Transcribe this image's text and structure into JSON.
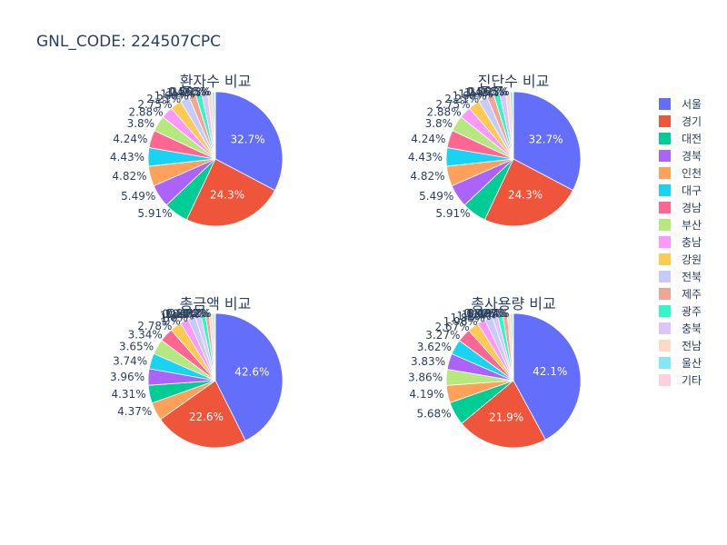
{
  "title": "GNL_CODE: 224507CPC",
  "legend": {
    "placement": "right",
    "entries": [
      "서울",
      "경기",
      "대전",
      "경북",
      "인천",
      "대구",
      "경남",
      "부산",
      "충남",
      "강원",
      "전북",
      "제주",
      "광주",
      "충북",
      "전남",
      "울산",
      "기타"
    ]
  },
  "colors": [
    "#636efa",
    "#EF553B",
    "#00cc96",
    "#ab63fa",
    "#FFA15A",
    "#19d3f3",
    "#FF6692",
    "#B6E880",
    "#FF97FF",
    "#FECB52",
    "#c6cafd",
    "#f4a494",
    "#2ff7c6",
    "#dcc5fd",
    "#fedac4",
    "#86e6f9",
    "#fecfde"
  ],
  "chart_data": [
    {
      "type": "pie",
      "title": "환자수 비교",
      "slices": [
        {
          "label": "서울",
          "value": 32.7
        },
        {
          "label": "경기",
          "value": 24.3
        },
        {
          "label": "대전",
          "value": 5.91
        },
        {
          "label": "경북",
          "value": 5.49
        },
        {
          "label": "인천",
          "value": 4.82
        },
        {
          "label": "대구",
          "value": 4.43
        },
        {
          "label": "경남",
          "value": 4.24
        },
        {
          "label": "부산",
          "value": 3.8
        },
        {
          "label": "충남",
          "value": 2.88
        },
        {
          "label": "강원",
          "value": 2.75
        },
        {
          "label": "전북",
          "value": 2.21
        },
        {
          "label": "제주",
          "value": 1.68
        },
        {
          "label": "광주",
          "value": 1.43
        },
        {
          "label": "충북",
          "value": 1.43
        },
        {
          "label": "전남",
          "value": 1.11
        },
        {
          "label": "울산",
          "value": 0.565
        },
        {
          "label": "기타",
          "value": 0.195
        }
      ],
      "value_labels": [
        "32.7%",
        "24.3%",
        "5.91%",
        "5.49%",
        "4.82%",
        "4.43%",
        "4.24%",
        "3.8%",
        "2.88%",
        "2.75%",
        "2.21%",
        "1.68%",
        "1.43%",
        "1.43%",
        "1.11%",
        "0.565%",
        "0.195%"
      ]
    },
    {
      "type": "pie",
      "title": "진단수 비교",
      "slices": [
        {
          "label": "서울",
          "value": 32.7
        },
        {
          "label": "경기",
          "value": 24.3
        },
        {
          "label": "대전",
          "value": 5.91
        },
        {
          "label": "경북",
          "value": 5.49
        },
        {
          "label": "인천",
          "value": 4.82
        },
        {
          "label": "대구",
          "value": 4.43
        },
        {
          "label": "경남",
          "value": 4.24
        },
        {
          "label": "부산",
          "value": 3.8
        },
        {
          "label": "충남",
          "value": 2.88
        },
        {
          "label": "강원",
          "value": 2.75
        },
        {
          "label": "전북",
          "value": 2.21
        },
        {
          "label": "제주",
          "value": 1.68
        },
        {
          "label": "광주",
          "value": 1.43
        },
        {
          "label": "충북",
          "value": 1.43
        },
        {
          "label": "전남",
          "value": 1.11
        },
        {
          "label": "울산",
          "value": 0.565
        },
        {
          "label": "기타",
          "value": 0.195
        }
      ],
      "value_labels": [
        "32.7%",
        "24.3%",
        "5.91%",
        "5.49%",
        "4.82%",
        "4.43%",
        "4.24%",
        "3.8%",
        "2.88%",
        "2.75%",
        "2.21%",
        "1.68%",
        "1.43%",
        "1.43%",
        "1.11%",
        "0.565%",
        "0.195%"
      ]
    },
    {
      "type": "pie",
      "title": "총금액 비교",
      "slices": [
        {
          "label": "서울",
          "value": 42.6
        },
        {
          "label": "경기",
          "value": 22.6
        },
        {
          "label": "인천",
          "value": 4.37
        },
        {
          "label": "대전",
          "value": 4.31
        },
        {
          "label": "경북",
          "value": 3.96
        },
        {
          "label": "대구",
          "value": 3.74
        },
        {
          "label": "부산",
          "value": 3.65
        },
        {
          "label": "경남",
          "value": 3.34
        },
        {
          "label": "강원",
          "value": 2.78
        },
        {
          "label": "충남",
          "value": 2.0
        },
        {
          "label": "전북",
          "value": 1.8
        },
        {
          "label": "충북",
          "value": 1.34
        },
        {
          "label": "광주",
          "value": 1.15
        },
        {
          "label": "제주",
          "value": 0.868
        },
        {
          "label": "전남",
          "value": 0.814
        },
        {
          "label": "울산",
          "value": 0.472
        },
        {
          "label": "기타",
          "value": 0.2
        }
      ],
      "value_labels": [
        "42.6%",
        "22.6%",
        "4.37%",
        "4.31%",
        "3.96%",
        "3.74%",
        "3.65%",
        "3.34%",
        "2.78%",
        "2%",
        "1.8%",
        "1.34%",
        "1.15%",
        "0.868%",
        "0.814%",
        "0.472%",
        "0.2%"
      ]
    },
    {
      "type": "pie",
      "title": "총사용량 비교",
      "slices": [
        {
          "label": "서울",
          "value": 42.1
        },
        {
          "label": "경기",
          "value": 21.9
        },
        {
          "label": "대전",
          "value": 5.68
        },
        {
          "label": "인천",
          "value": 4.19
        },
        {
          "label": "부산",
          "value": 3.86
        },
        {
          "label": "경북",
          "value": 3.83
        },
        {
          "label": "대구",
          "value": 3.62
        },
        {
          "label": "경남",
          "value": 3.27
        },
        {
          "label": "강원",
          "value": 2.67
        },
        {
          "label": "충남",
          "value": 1.96
        },
        {
          "label": "전북",
          "value": 1.83
        },
        {
          "label": "충북",
          "value": 1.29
        },
        {
          "label": "광주",
          "value": 1.25
        },
        {
          "label": "제주",
          "value": 1.09
        },
        {
          "label": "전남",
          "value": 0.806
        },
        {
          "label": "울산",
          "value": 0.487
        },
        {
          "label": "기타",
          "value": 0.194
        }
      ],
      "value_labels": [
        "42.1%",
        "21.9%",
        "5.68%",
        "4.19%",
        "3.86%",
        "3.83%",
        "3.62%",
        "3.27%",
        "2.67%",
        "1.96%",
        "1.83%",
        "1.29%",
        "1.25%",
        "1.09%",
        "0.806%",
        "0.487%",
        "0.194%"
      ]
    }
  ]
}
